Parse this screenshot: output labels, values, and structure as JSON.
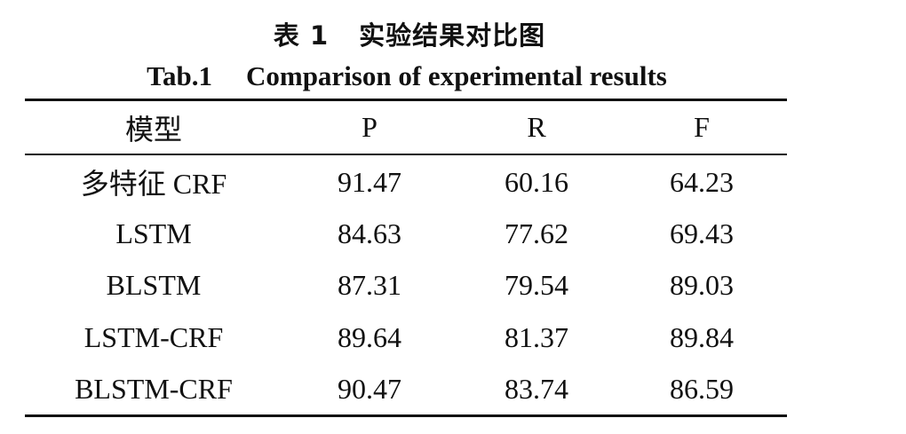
{
  "caption": {
    "cn_label": "表 1",
    "cn_title": "实验结果对比图",
    "en_label": "Tab.1",
    "en_title": "Comparison of experimental results"
  },
  "table": {
    "headers": [
      "模型",
      "P",
      "R",
      "F"
    ],
    "rows": [
      [
        "多特征 CRF",
        "91.47",
        "60.16",
        "64.23"
      ],
      [
        "LSTM",
        "84.63",
        "77.62",
        "69.43"
      ],
      [
        "BLSTM",
        "87.31",
        "79.54",
        "89.03"
      ],
      [
        "LSTM-CRF",
        "89.64",
        "81.37",
        "89.84"
      ],
      [
        "BLSTM-CRF",
        "90.47",
        "83.74",
        "86.59"
      ]
    ]
  }
}
